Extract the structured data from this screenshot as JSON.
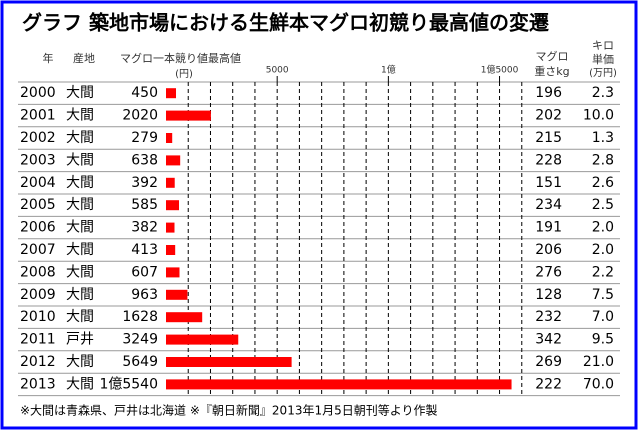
{
  "chart_data": {
    "type": "bar",
    "orientation": "horizontal",
    "title": "グラフ 築地市場における生鮮本マグロ初競り最高値の変遷",
    "year_header": "年",
    "origin_header": "産地",
    "value_header": "マグロ一本競り値最高値",
    "value_unit": "(円)",
    "weight_header": [
      "マグロ",
      "重さkg"
    ],
    "unit_price_header": [
      "キロ",
      "単価",
      "(万円)"
    ],
    "categories": [
      "2000",
      "2001",
      "2002",
      "2003",
      "2004",
      "2005",
      "2006",
      "2007",
      "2008",
      "2009",
      "2010",
      "2011",
      "2012",
      "2013"
    ],
    "origins": [
      "大間",
      "大間",
      "大間",
      "大間",
      "大間",
      "大間",
      "大間",
      "大間",
      "大間",
      "大間",
      "大間",
      "戸井",
      "大間",
      "大間"
    ],
    "values": [
      450,
      2020,
      279,
      638,
      392,
      585,
      382,
      413,
      607,
      963,
      1628,
      3249,
      5649,
      15540
    ],
    "value_labels": [
      "450",
      "2020",
      "279",
      "638",
      "392",
      "585",
      "382",
      "413",
      "607",
      "963",
      "1628",
      "3249",
      "5649",
      "1億5540"
    ],
    "weights": [
      196,
      202,
      215,
      228,
      151,
      234,
      191,
      206,
      276,
      128,
      232,
      342,
      269,
      222
    ],
    "unit_prices": [
      2.3,
      10.0,
      1.3,
      2.8,
      2.6,
      2.5,
      2.0,
      2.0,
      2.2,
      7.5,
      7.0,
      9.5,
      21.0,
      70.0
    ],
    "unit_price_labels": [
      "2.3",
      "10.0",
      "1.3",
      "2.8",
      "2.6",
      "2.5",
      "2.0",
      "2.0",
      "2.2",
      "7.5",
      "7.0",
      "9.5",
      "21.0",
      "70.0"
    ],
    "xlim": [
      0,
      16100
    ],
    "xticks": [
      5000,
      {
        "value": 10000,
        "label": "1億"
      },
      {
        "value": 15000,
        "label": "1億5000"
      }
    ],
    "xminor": [
      1000,
      2000,
      3000,
      4000,
      5000,
      6000,
      7000,
      8000,
      9000,
      10000,
      11000,
      12000,
      13000,
      14000,
      15000,
      16000
    ],
    "color": "#ff0000",
    "note": "※大間は青森県、戸井は北海道 ※『朝日新聞』2013年1月5日朝刊等より作製"
  }
}
